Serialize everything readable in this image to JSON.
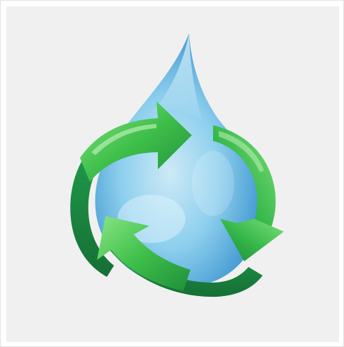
{
  "image": {
    "subject": "recycle-arrows-around-water-drop",
    "icons": [
      "water-drop-icon",
      "recycle-arrows-icon"
    ],
    "colors": {
      "frame_border": "#e2e2e2",
      "background": "#f0f0f0",
      "drop_light": "#cdeaf6",
      "drop_mid": "#7fc6ea",
      "drop_dark": "#2f86c7",
      "arrow_light": "#7fe07a",
      "arrow_mid": "#3fbf4a",
      "arrow_dark": "#1e8f3a"
    }
  }
}
